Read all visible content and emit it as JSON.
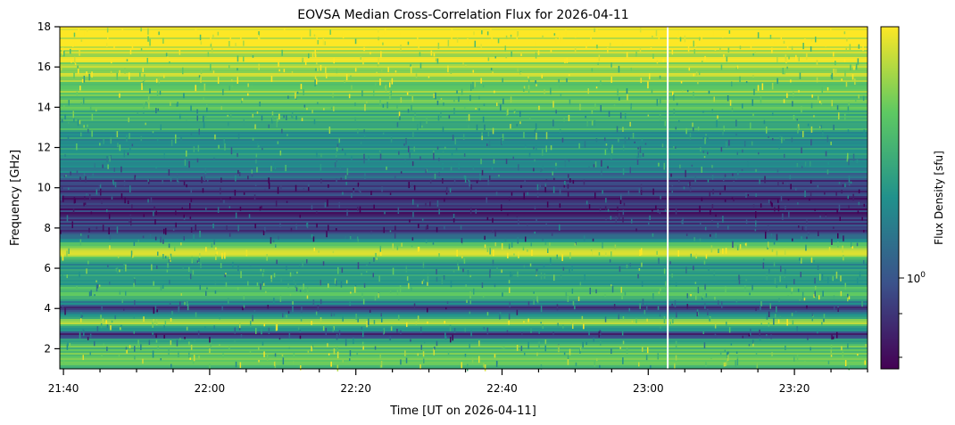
{
  "chart_data": {
    "type": "heatmap",
    "title": "EOVSA Median Cross-Correlation Flux for 2026-04-11",
    "xlabel": "Time [UT on 2026-04-11]",
    "ylabel": "Frequency [GHz]",
    "colorbar_label": "Flux Density [sfu]",
    "colormap": "viridis",
    "color_scale": "log",
    "colors": [
      "#440154",
      "#3b528b",
      "#21918c",
      "#5ec962",
      "#fde725"
    ],
    "x_ticks": [
      "21:40",
      "22:00",
      "22:20",
      "22:40",
      "23:00",
      "23:20"
    ],
    "y_ticks": [
      "2",
      "4",
      "6",
      "8",
      "10",
      "12",
      "14",
      "16",
      "18"
    ],
    "y_range": [
      1.0,
      18.0
    ],
    "x_range": [
      "21:39:30",
      "23:30:00"
    ],
    "colorbar_tick_label": "10",
    "colorbar_tick_exp": "0",
    "data_gap_time": "23:02:40",
    "frequency_profile": [
      {
        "freq": 1.0,
        "level": 0.7
      },
      {
        "freq": 1.6,
        "level": 0.75
      },
      {
        "freq": 2.4,
        "level": 0.65
      },
      {
        "freq": 2.7,
        "level": 0.1
      },
      {
        "freq": 3.3,
        "level": 0.85
      },
      {
        "freq": 3.8,
        "level": 0.55
      },
      {
        "freq": 4.0,
        "level": 0.15
      },
      {
        "freq": 4.6,
        "level": 0.7
      },
      {
        "freq": 5.2,
        "level": 0.6
      },
      {
        "freq": 6.0,
        "level": 0.55
      },
      {
        "freq": 6.4,
        "level": 0.5
      },
      {
        "freq": 6.7,
        "level": 0.9
      },
      {
        "freq": 7.1,
        "level": 0.92
      },
      {
        "freq": 7.5,
        "level": 0.3
      },
      {
        "freq": 8.5,
        "level": 0.15
      },
      {
        "freq": 9.5,
        "level": 0.12
      },
      {
        "freq": 10.3,
        "level": 0.2
      },
      {
        "freq": 11.0,
        "level": 0.45
      },
      {
        "freq": 12.5,
        "level": 0.55
      },
      {
        "freq": 13.5,
        "level": 0.65
      },
      {
        "freq": 14.5,
        "level": 0.72
      },
      {
        "freq": 15.5,
        "level": 0.82
      },
      {
        "freq": 16.5,
        "level": 0.9
      },
      {
        "freq": 17.5,
        "level": 0.97
      },
      {
        "freq": 18.0,
        "level": 1.0
      }
    ]
  }
}
